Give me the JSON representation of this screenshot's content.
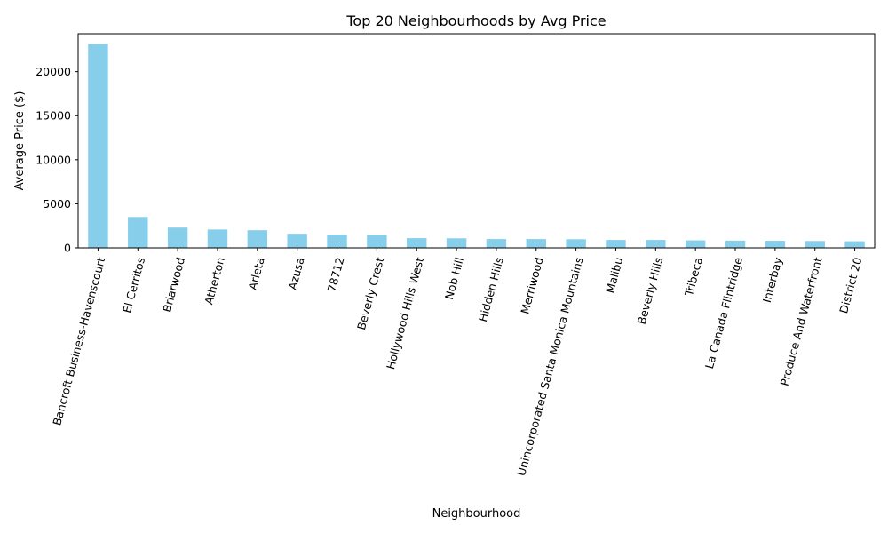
{
  "chart_data": {
    "type": "bar",
    "title": "Top 20 Neighbourhoods by Avg Price",
    "xlabel": "Neighbourhood",
    "ylabel": "Average Price ($)",
    "ylim": [
      0,
      24300
    ],
    "yticks": [
      0,
      5000,
      10000,
      15000,
      20000
    ],
    "bar_color": "#87ceeb",
    "grid": false,
    "legend": "none",
    "categories": [
      "Bancroft Business-Havenscourt",
      "El Cerritos",
      "Briarwood",
      "Atherton",
      "Arleta",
      "Azusa",
      "78712",
      "Beverly Crest",
      "Hollywood Hills West",
      "Nob Hill",
      "Hidden Hills",
      "Merriwood",
      "Unincorporated Santa Monica Mountains",
      "Malibu",
      "Beverly Hills",
      "Tribeca",
      "La Canada Flintridge",
      "Interbay",
      "Produce And Waterfront",
      "District 20"
    ],
    "values": [
      23150,
      3500,
      2300,
      2080,
      2000,
      1600,
      1500,
      1480,
      1100,
      1080,
      1000,
      1000,
      980,
      900,
      900,
      850,
      820,
      800,
      780,
      750
    ]
  }
}
